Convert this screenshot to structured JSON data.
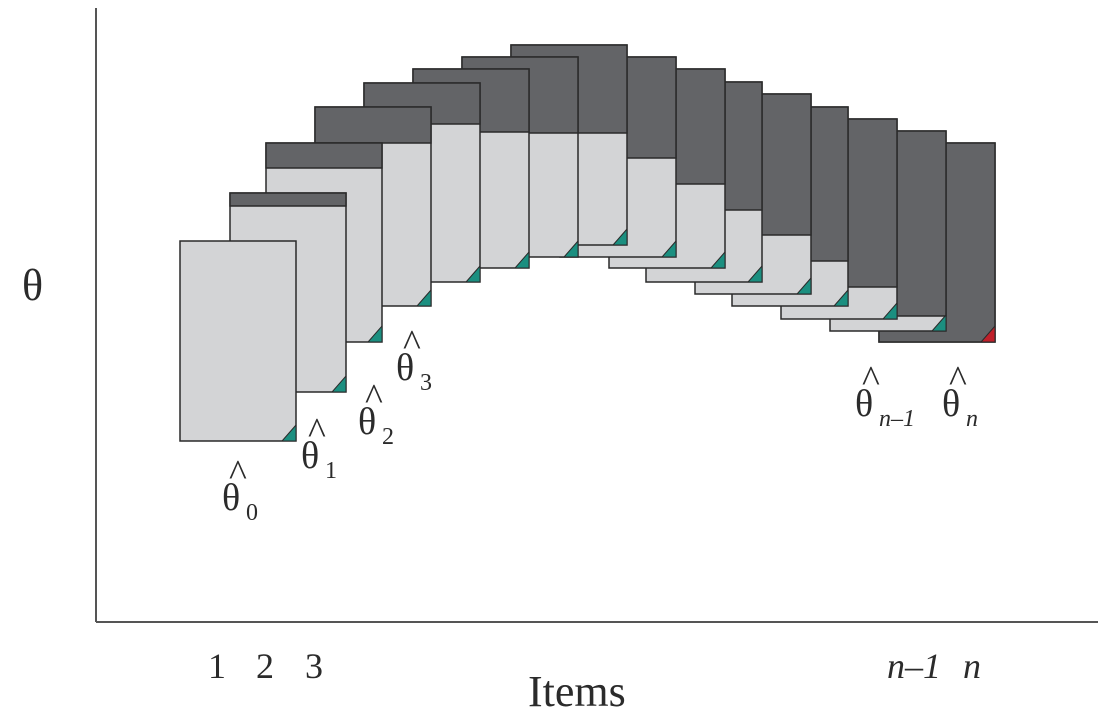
{
  "axes": {
    "y_label": "θ",
    "x_label": "Items",
    "x_ticks": [
      {
        "text": "1",
        "italic": false
      },
      {
        "text": "2",
        "italic": false
      },
      {
        "text": "3",
        "italic": false
      },
      {
        "text": "n–1",
        "italic": true
      },
      {
        "text": "n",
        "italic": true
      }
    ]
  },
  "estimates": [
    {
      "base": "θ",
      "hat": "^",
      "sub": "0",
      "sub_italic": false
    },
    {
      "base": "θ",
      "hat": "^",
      "sub": "1",
      "sub_italic": false
    },
    {
      "base": "θ",
      "hat": "^",
      "sub": "2",
      "sub_italic": false
    },
    {
      "base": "θ",
      "hat": "^",
      "sub": "3",
      "sub_italic": false
    },
    {
      "base": "θ",
      "hat": "^",
      "sub": "n–1",
      "sub_italic": true
    },
    {
      "base": "θ",
      "hat": "^",
      "sub": "n",
      "sub_italic": true
    }
  ],
  "colors": {
    "page_light": "#d3d4d6",
    "page_dark": "#636467",
    "outline": "#2a2a2a",
    "corner_teal": "#1b8f80",
    "corner_red": "#c0202a",
    "axis": "#555555",
    "text": "#2b2b2b"
  }
}
